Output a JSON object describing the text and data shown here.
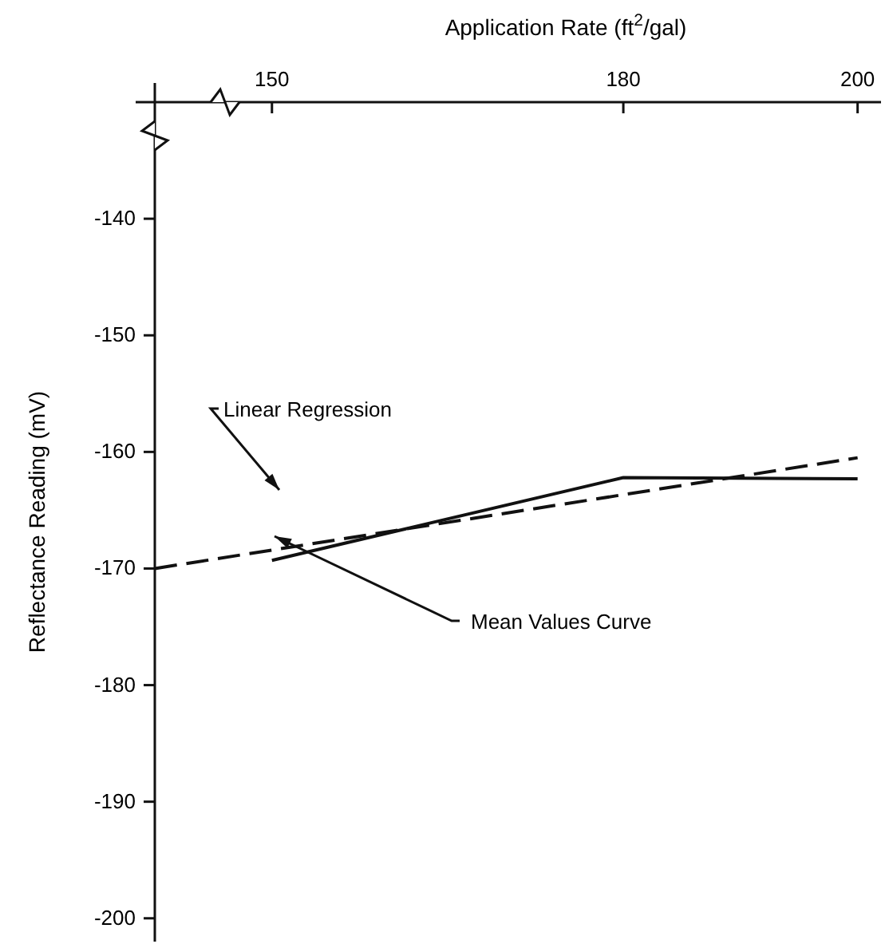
{
  "chart_data": {
    "type": "line",
    "xlabel": "Application Rate (ft$^{2}$/gal)",
    "ylabel": "Reflectance Reading (mV)",
    "xlim": [
      140,
      202
    ],
    "xticks": [
      150,
      180,
      200
    ],
    "ylim": [
      -202,
      -130
    ],
    "yticks": [
      -140,
      -150,
      -160,
      -170,
      -180,
      -190,
      -200
    ],
    "series": [
      {
        "name": "Linear Regression",
        "color": "#111111",
        "line_style": "dashed",
        "x": [
          140,
          200
        ],
        "values": [
          -170,
          -160.5
        ]
      },
      {
        "name": "Mean Values Curve",
        "color": "#111111",
        "line_style": "solid",
        "x": [
          150,
          180,
          200
        ],
        "values": [
          -169.3,
          -162.2,
          -162.3
        ]
      }
    ]
  }
}
